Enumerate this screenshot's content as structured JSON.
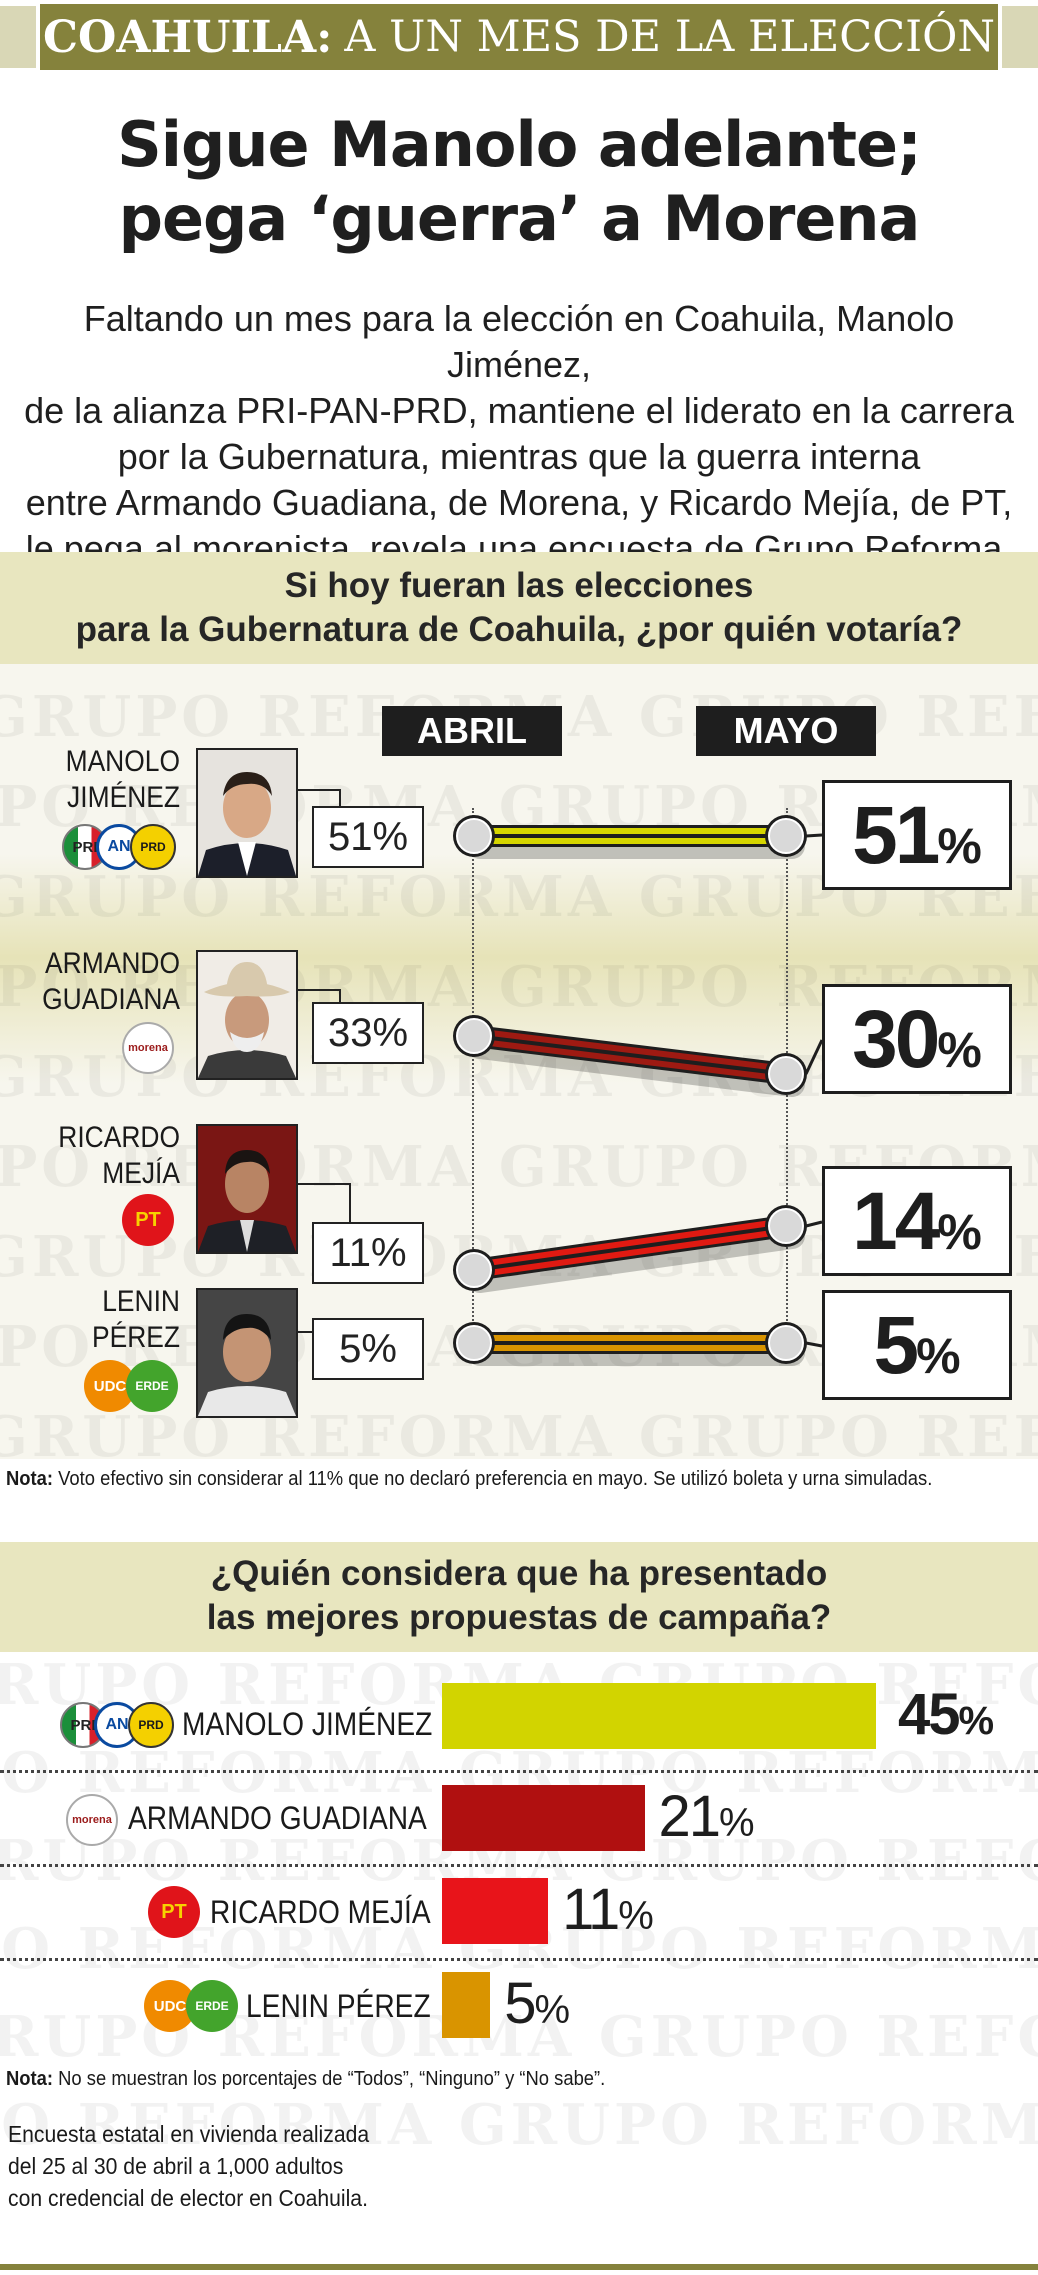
{
  "banner": {
    "strong": "COAHUILA:",
    "rest": "A UN MES DE LA ELECCIÓN"
  },
  "headline": {
    "line1": "Sigue Manolo adelante;",
    "line2": "pega ‘guerra’ a Morena"
  },
  "lede": [
    "Faltando un mes para la elección en Coahuila, Manolo Jiménez,",
    "de la alianza PRI-PAN-PRD, mantiene el liderato en la carrera",
    "por la Gubernatura, mientras que la guerra interna",
    "entre Armando Guadiana, de Morena, y Ricardo Mejía, de PT,",
    "le pega al morenista, revela una encuesta de Grupo Reforma."
  ],
  "watermark": "GRUPO REFORMA GRUPO REFORMA GRUPO REFORMA",
  "chart_data": [
    {
      "type": "line",
      "title": "Si hoy fueran las elecciones para la Gubernatura de Coahuila, ¿por quién votaría?",
      "title_lines": [
        "Si hoy fueran las elecciones",
        "para la Gubernatura de Coahuila,  ¿por quién votaría?"
      ],
      "categories": [
        "ABRIL",
        "MAYO"
      ],
      "series": [
        {
          "name": "MANOLO JIMÉNEZ",
          "name_lines": [
            "MANOLO",
            "JIMÉNEZ"
          ],
          "party": "PRI-PAN-PRD",
          "values": [
            51,
            51
          ],
          "labels": [
            "51%",
            "51"
          ],
          "color": "#d6d600"
        },
        {
          "name": "ARMANDO GUADIANA",
          "name_lines": [
            "ARMANDO",
            "GUADIANA"
          ],
          "party": "morena",
          "values": [
            33,
            30
          ],
          "labels": [
            "33%",
            "30"
          ],
          "color": "#9e1a12"
        },
        {
          "name": "RICARDO MEJÍA",
          "name_lines": [
            "RICARDO",
            "MEJÍA"
          ],
          "party": "PT",
          "values": [
            11,
            14
          ],
          "labels": [
            "11%",
            "14"
          ],
          "color": "#e01a12"
        },
        {
          "name": "LENIN PÉREZ",
          "name_lines": [
            "LENIN",
            "PÉREZ"
          ],
          "party": "UDC-VERDE",
          "values": [
            5,
            5
          ],
          "labels": [
            "5%",
            "5"
          ],
          "color": "#d99400"
        }
      ],
      "note_label": "Nota:",
      "note": "Voto efectivo sin considerar al 11% que no declaró preferencia en mayo. Se utilizó boleta y urna simuladas."
    },
    {
      "type": "bar",
      "title": "¿Quién considera que ha presentado las mejores propuestas de campaña?",
      "title_lines": [
        "¿Quién considera  que ha presentado",
        "las mejores propuestas de campaña?"
      ],
      "categories": [
        "MANOLO JIMÉNEZ",
        "ARMANDO GUADIANA",
        "RICARDO MEJÍA",
        "LENIN PÉREZ"
      ],
      "values": [
        45,
        21,
        11,
        5
      ],
      "colors": [
        "#d2d400",
        "#b01010",
        "#e8141a",
        "#d99400"
      ],
      "note_label": "Nota:",
      "note": "No se muestran los porcentajes de “Todos”, “Ninguno” y “No sabe”."
    }
  ],
  "pct_sign": "%",
  "logos": {
    "pri": "PRI",
    "pan": "AN",
    "prd": "PRD",
    "morena": "morena",
    "pt": "PT",
    "udc": "UDC",
    "verde": "ERDE"
  },
  "source": [
    "Encuesta estatal en vivienda realizada",
    "del 25 al 30 de abril a 1,000 adultos",
    "con credencial de elector  en Coahuila."
  ]
}
